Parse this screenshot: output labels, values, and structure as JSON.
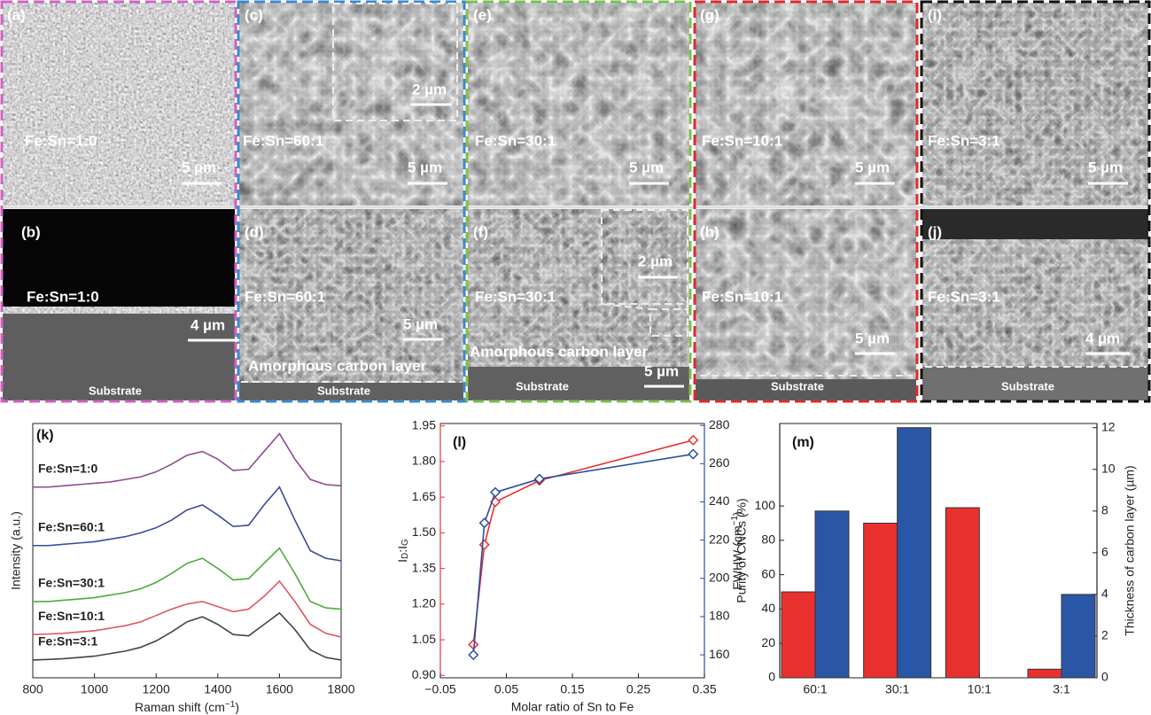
{
  "panels": [
    {
      "label": "(a)",
      "text": "Fe:Sn=1:0",
      "scale": "5 µm"
    },
    {
      "label": "(b)",
      "text": "Fe:Sn=1:0",
      "scale": "4 µm",
      "substrate": "Substrate"
    },
    {
      "label": "(c)",
      "text": "Fe:Sn=60:1",
      "scale": "5 µm",
      "inset_scale": "2 µm"
    },
    {
      "label": "(d)",
      "text": "Fe:Sn=60:1",
      "scale": "5 µm",
      "layer": "Amorphous carbon layer",
      "substrate": "Substrate"
    },
    {
      "label": "(e)",
      "text": "Fe:Sn=30:1",
      "scale": "5 µm"
    },
    {
      "label": "(f)",
      "text": "Fe:Sn=30:1",
      "scale": "5 µm",
      "inset_scale": "2 µm",
      "layer": "Amorphous carbon layer",
      "substrate": "Substrate"
    },
    {
      "label": "(g)",
      "text": "Fe:Sn=10:1",
      "scale": "5 µm"
    },
    {
      "label": "(h)",
      "text": "Fe:Sn=10:1",
      "scale": "5 µm",
      "substrate": "Substrate"
    },
    {
      "label": "(i)",
      "text": "Fe:Sn=3:1",
      "scale": "5 µm"
    },
    {
      "label": "(j)",
      "text": "Fe:Sn=3:1",
      "scale": "4 µm",
      "substrate": "Substrate"
    }
  ],
  "chart_data": [
    {
      "type": "line",
      "panel_label": "(k)",
      "xlabel_parts": [
        "Raman shift (cm",
        "−1",
        ")"
      ],
      "ylabel": "Intensity (a.u.)",
      "x": [
        800,
        850,
        900,
        950,
        1000,
        1050,
        1100,
        1150,
        1200,
        1250,
        1300,
        1350,
        1400,
        1450,
        1500,
        1550,
        1600,
        1650,
        1700,
        1750,
        1800
      ],
      "xlim": [
        800,
        1800
      ],
      "xticks": [
        800,
        1000,
        1200,
        1400,
        1600,
        1800
      ],
      "ylim": [
        0,
        10
      ],
      "series": [
        {
          "name": "Fe:Sn=1:0",
          "color": "#8e4a92",
          "values": [
            7.5,
            7.5,
            7.55,
            7.6,
            7.65,
            7.7,
            7.8,
            7.9,
            8.1,
            8.4,
            8.75,
            8.9,
            8.6,
            8.15,
            8.2,
            8.9,
            9.6,
            8.6,
            7.8,
            7.6,
            7.55
          ]
        },
        {
          "name": "Fe:Sn=60:1",
          "color": "#3b4b9c",
          "values": [
            5.2,
            5.2,
            5.25,
            5.3,
            5.35,
            5.45,
            5.55,
            5.7,
            5.9,
            6.2,
            6.6,
            6.8,
            6.4,
            5.95,
            6.0,
            6.8,
            7.5,
            6.2,
            5.0,
            4.7,
            4.6
          ]
        },
        {
          "name": "Fe:Sn=30:1",
          "color": "#4eab3e",
          "values": [
            3.0,
            3.0,
            3.05,
            3.1,
            3.15,
            3.25,
            3.35,
            3.5,
            3.75,
            4.1,
            4.5,
            4.7,
            4.3,
            3.85,
            3.9,
            4.5,
            5.1,
            4.1,
            3.0,
            2.75,
            2.7
          ]
        },
        {
          "name": "Fe:Sn=10:1",
          "color": "#e0555e",
          "values": [
            1.7,
            1.72,
            1.75,
            1.8,
            1.85,
            1.95,
            2.05,
            2.2,
            2.45,
            2.7,
            2.9,
            3.0,
            2.8,
            2.6,
            2.7,
            3.2,
            3.8,
            3.0,
            2.1,
            1.75,
            1.6
          ]
        },
        {
          "name": "Fe:Sn=3:1",
          "color": "#444444",
          "values": [
            0.7,
            0.72,
            0.75,
            0.8,
            0.85,
            0.95,
            1.05,
            1.2,
            1.45,
            1.8,
            2.2,
            2.4,
            2.1,
            1.7,
            1.65,
            2.1,
            2.55,
            1.9,
            1.1,
            0.8,
            0.7
          ]
        }
      ]
    },
    {
      "type": "line",
      "panel_label": "(l)",
      "markers": "diamond",
      "xlabel": "Molar ratio of Sn to Fe",
      "ylabel_parts": [
        "I",
        "D",
        ":I",
        "G"
      ],
      "y2label_parts": [
        "FWHW (cm",
        "−1",
        ")"
      ],
      "ycolor": "#e8312f",
      "y2color": "#2a4fa0",
      "x": [
        0,
        0.0167,
        0.0333,
        0.1,
        0.333
      ],
      "xlim": [
        -0.05,
        0.35
      ],
      "xticks": [
        {
          "value": -0.05,
          "label": "−0.05"
        },
        0.05,
        0.15,
        0.25,
        0.35
      ],
      "ylim": [
        0.89,
        1.96
      ],
      "yticks": [
        {
          "value": 0.9,
          "label": "0.90"
        },
        1.05,
        {
          "value": 1.2,
          "label": "1.20"
        },
        1.35,
        {
          "value": 1.5,
          "label": "1.50"
        },
        1.65,
        {
          "value": 1.8,
          "label": "1.80"
        },
        1.95
      ],
      "y2lim": [
        148,
        281
      ],
      "y2ticks": [
        160,
        180,
        200,
        220,
        240,
        260,
        280
      ],
      "series": [
        {
          "color": "#e8312f",
          "values": [
            1.03,
            1.45,
            1.63,
            1.72,
            1.89
          ]
        },
        {
          "color": "#2a4fa0",
          "axis": "y2",
          "values": [
            160,
            229,
            245,
            252,
            265
          ]
        }
      ]
    },
    {
      "type": "bar",
      "panel_label": "(m)",
      "ylabel": "Purity of CNCs (%)",
      "y2label": "Thickness of carbon layer (µm)",
      "ylabel_color": "#e8312f",
      "y2label_color": "#2a4fa0",
      "categories": [
        "60:1",
        "30:1",
        "10:1",
        "3:1"
      ],
      "ylim": [
        0,
        148
      ],
      "yticks": [
        0,
        20,
        40,
        60,
        80,
        100
      ],
      "y2lim": [
        0,
        12.2
      ],
      "y2ticks": [
        0,
        2,
        4,
        6,
        8,
        10,
        12
      ],
      "series": [
        {
          "color": "#e8312f",
          "values": [
            50,
            90,
            99,
            5
          ]
        },
        {
          "color": "#2a56a6",
          "axis": "y2",
          "values": [
            8,
            12,
            null,
            4
          ]
        }
      ]
    }
  ]
}
